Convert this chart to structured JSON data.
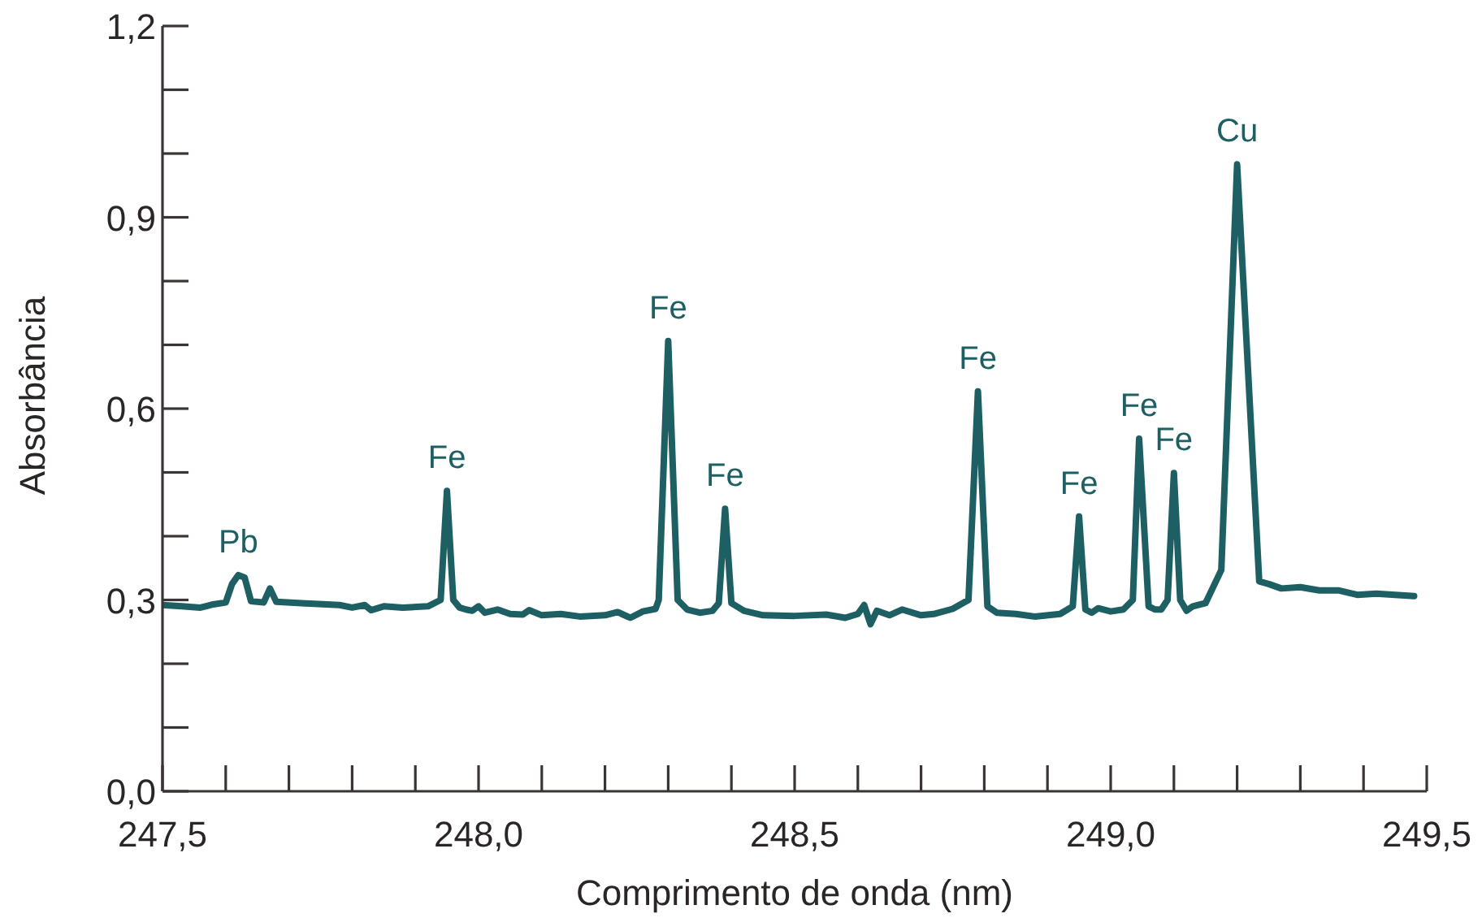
{
  "chart_data": {
    "type": "line",
    "xlabel": "Comprimento de onda (nm)",
    "ylabel": "Absorbância",
    "x": [
      247.5,
      247.53,
      247.56,
      247.58,
      247.6,
      247.61,
      247.62,
      247.63,
      247.64,
      247.66,
      247.67,
      247.68,
      247.72,
      247.78,
      247.8,
      247.82,
      247.83,
      247.85,
      247.88,
      247.92,
      247.94,
      247.95,
      247.96,
      247.97,
      247.98,
      247.99,
      248.0,
      248.01,
      248.03,
      248.05,
      248.07,
      248.08,
      248.1,
      248.13,
      248.16,
      248.2,
      248.22,
      248.24,
      248.26,
      248.28,
      248.285,
      248.3,
      248.315,
      248.33,
      248.35,
      248.37,
      248.38,
      248.39,
      248.4,
      248.42,
      248.45,
      248.5,
      248.55,
      248.58,
      248.6,
      248.61,
      248.62,
      248.63,
      248.65,
      248.67,
      248.7,
      248.72,
      248.75,
      248.775,
      248.79,
      248.805,
      248.82,
      248.85,
      248.88,
      248.92,
      248.94,
      248.95,
      248.96,
      248.97,
      248.98,
      249.0,
      249.02,
      249.035,
      249.045,
      249.06,
      249.07,
      249.08,
      249.09,
      249.1,
      249.11,
      249.12,
      249.13,
      249.15,
      249.175,
      249.2,
      249.235,
      249.25,
      249.27,
      249.3,
      249.33,
      249.36,
      249.39,
      249.42,
      249.45,
      249.48
    ],
    "series": [
      {
        "color": "#1d5f62",
        "values": [
          0.292,
          0.29,
          0.288,
          0.293,
          0.296,
          0.325,
          0.339,
          0.335,
          0.298,
          0.296,
          0.318,
          0.297,
          0.295,
          0.292,
          0.288,
          0.292,
          0.284,
          0.29,
          0.288,
          0.29,
          0.3,
          0.471,
          0.3,
          0.288,
          0.285,
          0.283,
          0.29,
          0.28,
          0.285,
          0.278,
          0.277,
          0.284,
          0.276,
          0.278,
          0.274,
          0.276,
          0.281,
          0.272,
          0.282,
          0.286,
          0.3,
          0.706,
          0.3,
          0.285,
          0.28,
          0.283,
          0.295,
          0.443,
          0.295,
          0.283,
          0.276,
          0.275,
          0.277,
          0.272,
          0.278,
          0.292,
          0.262,
          0.283,
          0.276,
          0.285,
          0.276,
          0.278,
          0.286,
          0.3,
          0.627,
          0.29,
          0.28,
          0.278,
          0.274,
          0.278,
          0.29,
          0.431,
          0.285,
          0.28,
          0.287,
          0.282,
          0.285,
          0.3,
          0.553,
          0.29,
          0.285,
          0.285,
          0.3,
          0.499,
          0.3,
          0.283,
          0.29,
          0.295,
          0.347,
          0.983,
          0.329,
          0.325,
          0.318,
          0.32,
          0.315,
          0.315,
          0.308,
          0.31,
          0.308,
          0.306
        ]
      }
    ],
    "xlim": [
      247.5,
      249.5
    ],
    "xticks": [
      {
        "value": 247.5,
        "label": "247,5"
      },
      {
        "value": 247.6,
        "label": null
      },
      {
        "value": 247.7,
        "label": null
      },
      {
        "value": 247.8,
        "label": null
      },
      {
        "value": 247.9,
        "label": null
      },
      {
        "value": 248.0,
        "label": "248,0"
      },
      {
        "value": 248.1,
        "label": null
      },
      {
        "value": 248.2,
        "label": null
      },
      {
        "value": 248.3,
        "label": null
      },
      {
        "value": 248.4,
        "label": null
      },
      {
        "value": 248.5,
        "label": "248,5"
      },
      {
        "value": 248.6,
        "label": null
      },
      {
        "value": 248.7,
        "label": null
      },
      {
        "value": 248.8,
        "label": null
      },
      {
        "value": 248.9,
        "label": null
      },
      {
        "value": 249.0,
        "label": "249,0"
      },
      {
        "value": 249.1,
        "label": null
      },
      {
        "value": 249.2,
        "label": null
      },
      {
        "value": 249.3,
        "label": null
      },
      {
        "value": 249.4,
        "label": null
      },
      {
        "value": 249.5,
        "label": "249,5"
      }
    ],
    "ylim": [
      0,
      1.2
    ],
    "yticks": [
      {
        "value": 0,
        "label": "0,0"
      },
      {
        "value": 0.1,
        "label": null
      },
      {
        "value": 0.2,
        "label": null
      },
      {
        "value": 0.3,
        "label": "0,3"
      },
      {
        "value": 0.4,
        "label": null
      },
      {
        "value": 0.5,
        "label": null
      },
      {
        "value": 0.6,
        "label": "0,6"
      },
      {
        "value": 0.7,
        "label": null
      },
      {
        "value": 0.8,
        "label": null
      },
      {
        "value": 0.9,
        "label": "0,9"
      },
      {
        "value": 1.0,
        "label": null
      },
      {
        "value": 1.1,
        "label": null
      },
      {
        "value": 1.2,
        "label": "1,2"
      }
    ],
    "annotations": [
      {
        "text": "Pb",
        "x": 247.62,
        "y": 0.339
      },
      {
        "text": "Fe",
        "x": 247.95,
        "y": 0.471
      },
      {
        "text": "Fe",
        "x": 248.3,
        "y": 0.706
      },
      {
        "text": "Fe",
        "x": 248.39,
        "y": 0.443
      },
      {
        "text": "Fe",
        "x": 248.79,
        "y": 0.627
      },
      {
        "text": "Fe",
        "x": 248.95,
        "y": 0.431
      },
      {
        "text": "Fe",
        "x": 249.045,
        "y": 0.553
      },
      {
        "text": "Fe",
        "x": 249.1,
        "y": 0.499
      },
      {
        "text": "Cu",
        "x": 249.2,
        "y": 0.983
      }
    ],
    "marker": "none",
    "line_style": "solid"
  }
}
